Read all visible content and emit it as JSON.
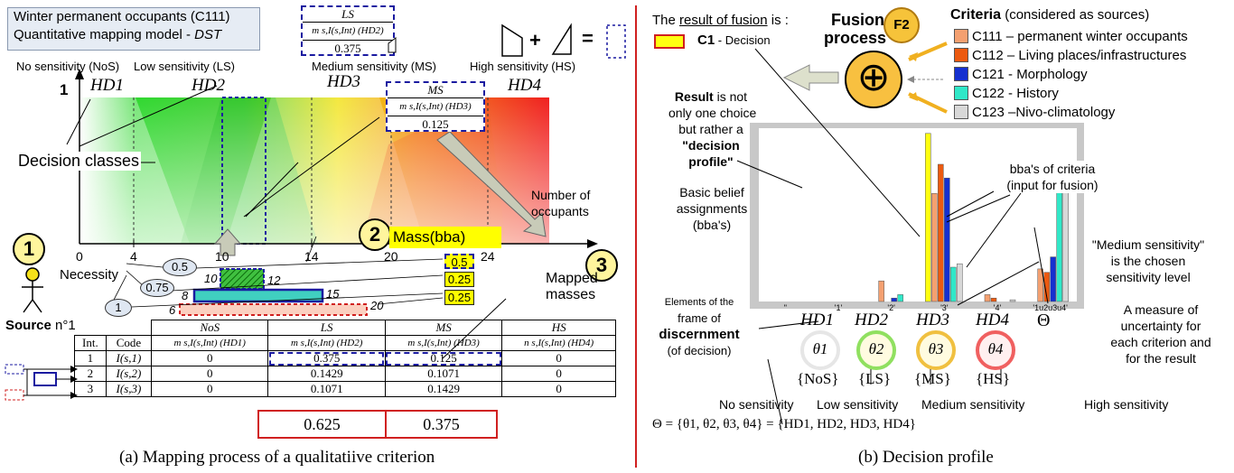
{
  "left": {
    "title_line1": "Winter permanent occupants (C111)",
    "title_line2": "Quantitative mapping model -",
    "title_dst": "DST",
    "sens_labels": [
      "No sensitivity (NoS)",
      "Low sensitivity (LS)",
      "Medium sensitivity (MS)",
      "High sensitivity (HS)"
    ],
    "hd": [
      "HD1",
      "HD2",
      "HD3",
      "HD4"
    ],
    "y_one": "1",
    "decision_classes": "Decision classes",
    "card_ls": {
      "head": "LS",
      "mass": "m s,I(s,Int) (HD2)",
      "val": "0.375"
    },
    "card_ms": {
      "head": "MS",
      "mass": "m s,I(s,Int) (HD3)",
      "val": "0.125"
    },
    "x_ticks": [
      "0",
      "4",
      "10",
      "14",
      "20",
      "24"
    ],
    "num_occ": [
      "Number of",
      "occupants"
    ],
    "mass_bba": "Mass(bba)",
    "step_numbers": [
      "1",
      "2",
      "3"
    ],
    "necessity": "Necessity",
    "nec_values": [
      "0.5",
      "0.75",
      "1"
    ],
    "interval_bounds": [
      "10",
      "12",
      "8",
      "15",
      "6",
      "20"
    ],
    "mapped_values": [
      "0.5",
      "0.25",
      "0.25"
    ],
    "mapped_masses": [
      "Mapped",
      "masses"
    ],
    "source": "Source",
    "source_n": "n°1",
    "table": {
      "top_headers": [
        "NoS",
        "LS",
        "MS",
        "HS"
      ],
      "headers": [
        "Int.",
        "Code",
        "m s,I(s,Int) (HD1)",
        "m s,I(s,Int) (HD2)",
        "m s,I(s,Int) (HD3)",
        "n s,I(s,Int) (HD4)"
      ],
      "rows": [
        [
          "1",
          "I(s,1)",
          "0",
          "0.375",
          "0.125",
          "0"
        ],
        [
          "2",
          "I(s,2)",
          "0",
          "0.1429",
          "0.1071",
          "0"
        ],
        [
          "3",
          "I(s,3)",
          "0",
          "0.1071",
          "0.1429",
          "0"
        ]
      ],
      "totals": [
        "0.625",
        "0.375"
      ]
    },
    "caption": "(a) Mapping process of a qualitatiive criterion"
  },
  "right": {
    "result_intro": "The result of fusion is :",
    "c1_label": "C1",
    "c1_rest": " - Decision",
    "fusion": [
      "Fusion",
      "process"
    ],
    "f2": "F2",
    "criteria_title": "Criteria",
    "criteria_sub": " (considered as sources)",
    "criteria": [
      {
        "label": "C111 – permanent winter occupants",
        "color": "#f4a070"
      },
      {
        "label": "C112 – Living places/infrastructures",
        "color": "#ec5a10"
      },
      {
        "label": "C121 - Morphology",
        "color": "#1530d0"
      },
      {
        "label": "C122 - History",
        "color": "#30e8c8"
      },
      {
        "label": "C123 –Nivo-climatology",
        "color": "#d8d8d8"
      }
    ],
    "result_note": [
      "Result is not",
      "only one choice",
      "but rather a",
      "\"decision",
      "profile\""
    ],
    "bba_note": [
      "Basic belief",
      "assignments",
      "(bba's)"
    ],
    "elements_note": [
      "Elements of the",
      "frame of",
      "discernment",
      "(of decision)"
    ],
    "crit_bba_note": [
      "bba's of criteria",
      "(input for fusion)"
    ],
    "medium_note": [
      "\"Medium sensitivity\"",
      "is the chosen",
      "sensitivity level"
    ],
    "uncert_note": [
      "A measure of",
      "uncertainty for",
      "each criterion and",
      "for the result"
    ],
    "sens_words": [
      "No sensitivity",
      "Low sensitivity",
      "Medium sensitivity",
      "High sensitivity"
    ],
    "theta_labels": [
      "θ1",
      "θ2",
      "θ3",
      "θ4"
    ],
    "set_labels": [
      "{NoS}",
      "{LS}",
      "{MS}",
      "{HS}"
    ],
    "axis_labels": [
      "HD1",
      "HD2",
      "HD3",
      "HD4",
      "Θ"
    ],
    "formula": "Θ = {θ1, θ2, θ3, θ4} = {HD1, HD2, HD3, HD4}",
    "caption": "(b) Decision profile"
  },
  "chart_data": {
    "type": "bar",
    "categories": [
      "\"",
      "'1'",
      "'2'",
      "'3'",
      "'4'",
      "'1u2u3u4'"
    ],
    "ylim": [
      0,
      1
    ],
    "series": [
      {
        "name": "C1",
        "values": [
          0,
          0,
          0,
          0.98,
          0,
          0
        ]
      },
      {
        "name": "C111",
        "values": [
          0,
          0,
          0.12,
          0.63,
          0.04,
          0.19
        ]
      },
      {
        "name": "C112",
        "values": [
          0,
          0,
          0,
          0.8,
          0.02,
          0.17
        ]
      },
      {
        "name": "C121",
        "values": [
          0,
          0,
          0.02,
          0.72,
          0,
          0.26
        ]
      },
      {
        "name": "C122",
        "values": [
          0,
          0,
          0.04,
          0.2,
          0,
          0.75
        ]
      },
      {
        "name": "C123",
        "values": [
          0,
          0,
          0,
          0.22,
          0.01,
          0.75
        ]
      }
    ],
    "colors": [
      "#ffff10",
      "#f4a070",
      "#ec5a10",
      "#1530d0",
      "#30e8c8",
      "#d8d8d8"
    ]
  }
}
